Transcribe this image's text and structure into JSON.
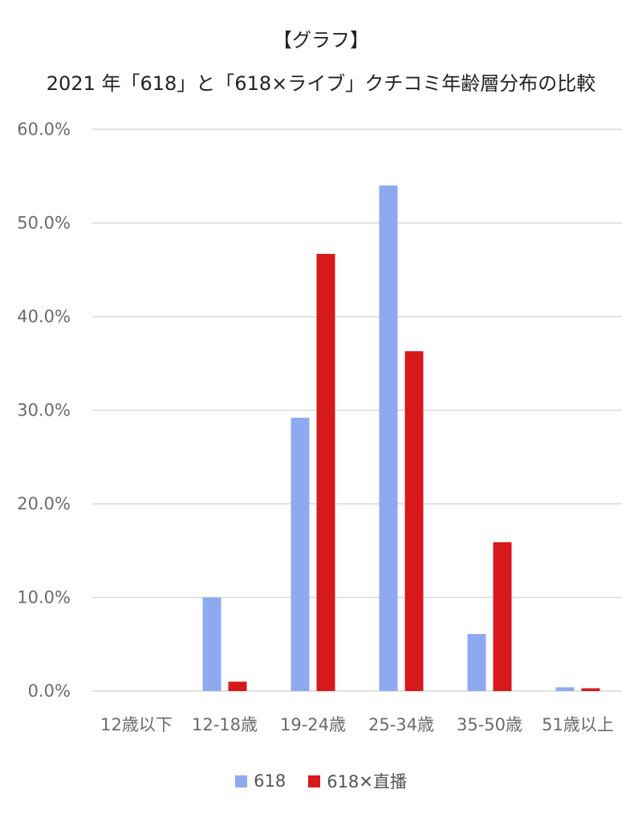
{
  "chart_data": {
    "type": "bar",
    "title": "【グラフ】",
    "subtitle": "2021 年「618」と「618×ライブ」クチコミ年齢層分布の比較",
    "categories": [
      "12歳以下",
      "12-18歳",
      "19-24歳",
      "25-34歳",
      "35-50歳",
      "51歳以上"
    ],
    "series": [
      {
        "name": "618",
        "color": "#8FA9F0",
        "values": [
          0.0,
          10.0,
          29.2,
          54.0,
          6.1,
          0.4
        ]
      },
      {
        "name": "618✕直播",
        "color": "#D7191C",
        "values": [
          0.0,
          1.0,
          46.7,
          36.3,
          15.9,
          0.3
        ]
      }
    ],
    "yticks": [
      "0.0%",
      "10.0%",
      "20.0%",
      "30.0%",
      "40.0%",
      "50.0%",
      "60.0%"
    ],
    "ylim": [
      0,
      60
    ],
    "grid": true,
    "legend_position": "bottom"
  }
}
